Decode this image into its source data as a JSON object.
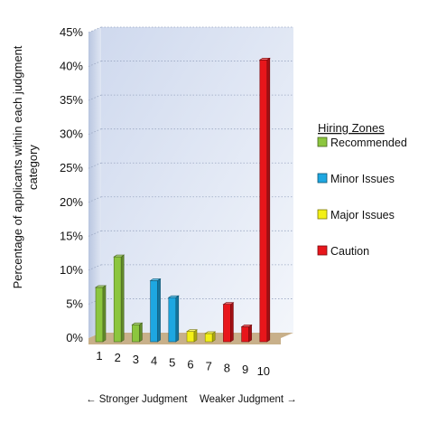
{
  "chart_data": {
    "type": "bar",
    "categories": [
      "1",
      "2",
      "3",
      "4",
      "5",
      "6",
      "7",
      "8",
      "9",
      "10"
    ],
    "values": [
      8,
      12.5,
      2.5,
      9,
      6.5,
      1.5,
      1.2,
      5.5,
      2.2,
      41.5
    ],
    "zones": [
      "Recommended",
      "Recommended",
      "Recommended",
      "Minor Issues",
      "Minor Issues",
      "Major Issues",
      "Major Issues",
      "Caution",
      "Caution",
      "Caution"
    ],
    "ylabel": "Percentage of applicants within each judgment category",
    "ylabel_lines": [
      "Percentage of applicants within each judgment",
      "category"
    ],
    "yticks": [
      "0%",
      "5%",
      "10%",
      "15%",
      "20%",
      "25%",
      "30%",
      "35%",
      "40%",
      "45%"
    ],
    "ylim": [
      0,
      45
    ],
    "grid": true,
    "legend": {
      "title": "Hiring Zones",
      "position": "right",
      "items": [
        {
          "label": "Recommended",
          "color": "#8cc63e"
        },
        {
          "label": "Minor Issues",
          "color": "#1ea7e1"
        },
        {
          "label": "Major Issues",
          "color": "#f3f016"
        },
        {
          "label": "Caution",
          "color": "#e8161b"
        }
      ]
    },
    "footer": {
      "left": "← Stronger Judgment",
      "right": "Weaker Judgment →"
    }
  }
}
